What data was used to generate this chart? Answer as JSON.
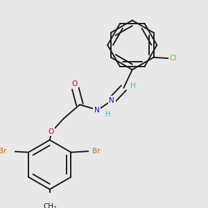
{
  "background_color": "#e8e8e8",
  "bond_color": "#1a1a1a",
  "bond_width": 1.4,
  "atom_colors": {
    "C": "#1a1a1a",
    "H": "#4db8b8",
    "N": "#1a00cc",
    "O": "#cc0000",
    "Br": "#cc6600",
    "Cl": "#66cc00"
  },
  "font_size": 7.5,
  "fig_width": 3.0,
  "fig_height": 3.0,
  "dpi": 100
}
